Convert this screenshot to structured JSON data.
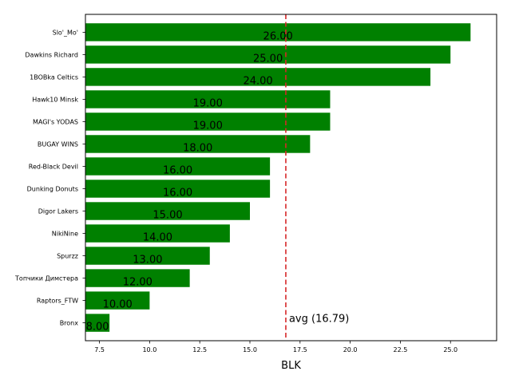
{
  "chart_data": {
    "type": "bar",
    "orientation": "horizontal",
    "categories": [
      "Slo'_Mo'",
      "Dawkins Richard",
      "1BOBka Celtics",
      "Hawk10 Minsk",
      "MAGI's YODAS",
      "BUGAY WINS",
      "Red-Black Devil",
      "Dunking Donuts",
      "Digor Lakers",
      "NikiNine",
      "Spurzz",
      "Топчики Димстера",
      "Raptors_FTW",
      "Bronx"
    ],
    "values": [
      26,
      25,
      24,
      19,
      19,
      18,
      16,
      16,
      15,
      14,
      13,
      12,
      10,
      8
    ],
    "value_labels": [
      "26.00",
      "25.00",
      "24.00",
      "19.00",
      "19.00",
      "18.00",
      "16.00",
      "16.00",
      "15.00",
      "14.00",
      "13.00",
      "12.00",
      "10.00",
      "8.00"
    ],
    "xlabel": "BLK",
    "ylabel": "",
    "xlim": [
      6.8,
      27.3
    ],
    "xticks": [
      7.5,
      10.0,
      12.5,
      15.0,
      17.5,
      20.0,
      22.5,
      25.0
    ],
    "xtick_labels": [
      "7.5",
      "10.0",
      "12.5",
      "15.0",
      "17.5",
      "20.0",
      "22.5",
      "25.0"
    ],
    "average": 16.79,
    "average_label": "avg (16.79)",
    "bar_color": "#008000",
    "average_line_color": "#d62728",
    "grid": false
  }
}
